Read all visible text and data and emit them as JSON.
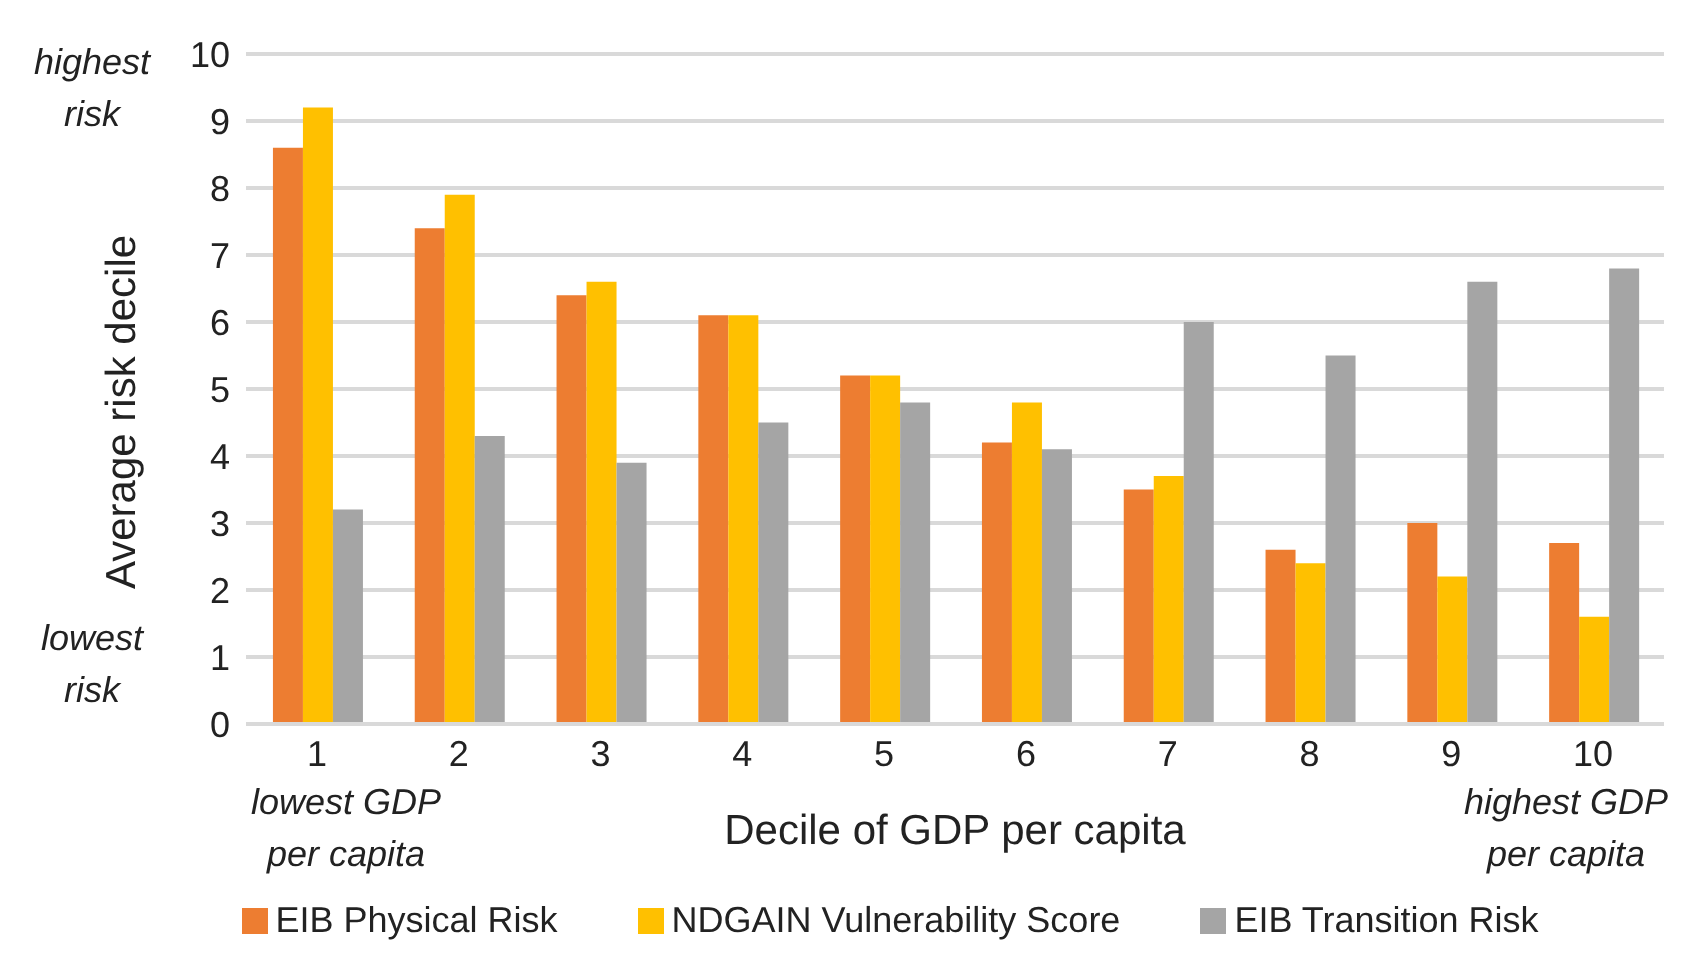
{
  "chart_data": {
    "type": "bar",
    "xlabel": "Decile of GDP per capita",
    "ylabel": "Average risk decile",
    "categories": [
      "1",
      "2",
      "3",
      "4",
      "5",
      "6",
      "7",
      "8",
      "9",
      "10"
    ],
    "series": [
      {
        "name": "EIB Physical Risk",
        "color": "#ed7d31",
        "values": [
          8.6,
          7.4,
          6.4,
          6.1,
          5.2,
          4.2,
          3.5,
          2.6,
          3.0,
          2.7
        ]
      },
      {
        "name": "NDGAIN Vulnerability Score",
        "color": "#ffc000",
        "values": [
          9.2,
          7.9,
          6.6,
          6.1,
          5.2,
          4.8,
          3.7,
          2.4,
          2.2,
          1.6
        ]
      },
      {
        "name": "EIB Transition Risk",
        "color": "#a5a5a5",
        "values": [
          3.2,
          4.3,
          3.9,
          4.5,
          4.8,
          4.1,
          6.0,
          5.5,
          6.6,
          6.8
        ]
      }
    ],
    "ylim": [
      0,
      10
    ],
    "yticks": [
      0,
      1,
      2,
      3,
      4,
      5,
      6,
      7,
      8,
      9,
      10
    ],
    "grid": "y",
    "legend": "bottom",
    "annotations": [
      "highest risk",
      "lowest risk",
      "lowest GDP per capita",
      "highest GDP per capita"
    ]
  }
}
